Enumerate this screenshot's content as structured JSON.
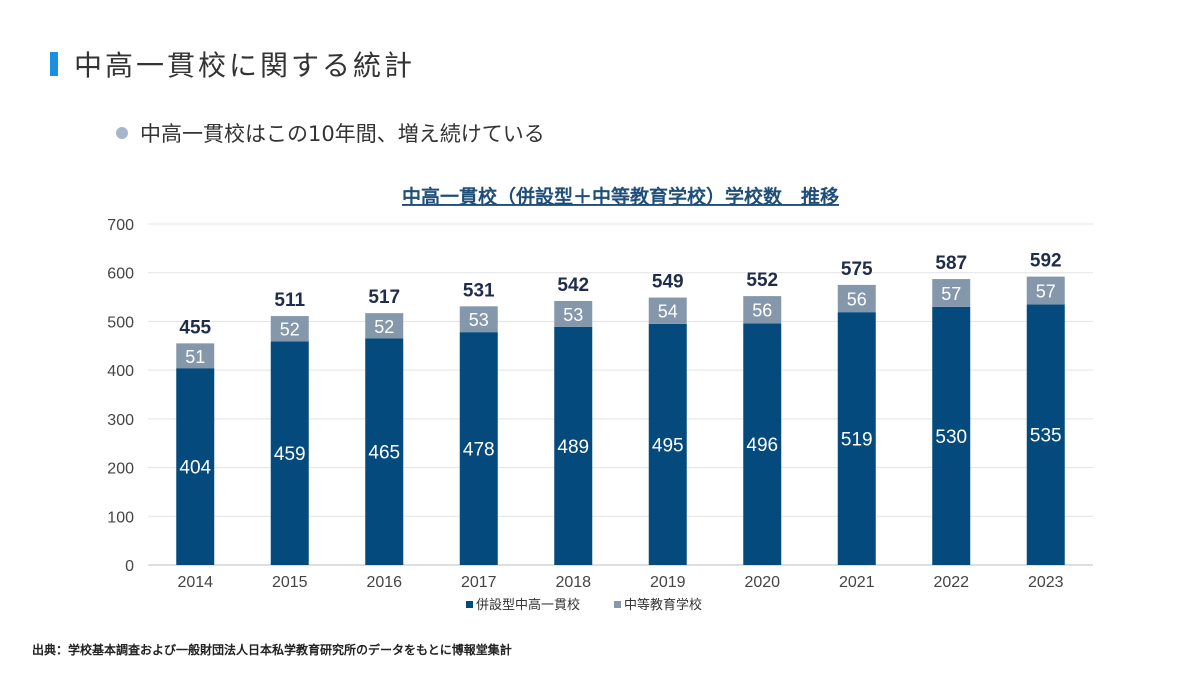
{
  "page": {
    "title": "中高一貫校に関する統計",
    "bullet": "中高一貫校はこの10年間、増え続けている",
    "source": "出典：学校基本調査および一般財団法人日本私学教育研究所のデータをもとに博報堂集計"
  },
  "colors": {
    "accent_bar": "#1a8fe0",
    "series_bottom": "#044a7c",
    "series_top": "#8597ab",
    "title_text": "#1f4e79"
  },
  "chart_data": {
    "type": "bar",
    "stacked": true,
    "title": "中高一貫校（併設型＋中等教育学校）学校数　推移",
    "categories": [
      "2014",
      "2015",
      "2016",
      "2017",
      "2018",
      "2019",
      "2020",
      "2021",
      "2022",
      "2023"
    ],
    "series": [
      {
        "name": "併設型中高一貫校",
        "values": [
          404,
          459,
          465,
          478,
          489,
          495,
          496,
          519,
          530,
          535
        ]
      },
      {
        "name": "中等教育学校",
        "values": [
          51,
          52,
          52,
          53,
          53,
          54,
          56,
          56,
          57,
          57
        ]
      }
    ],
    "totals": [
      455,
      511,
      517,
      531,
      542,
      549,
      552,
      575,
      587,
      592
    ],
    "ylim": [
      0,
      700
    ],
    "yticks": [
      0,
      100,
      200,
      300,
      400,
      500,
      600,
      700
    ],
    "grid": true,
    "legend_position": "bottom"
  }
}
